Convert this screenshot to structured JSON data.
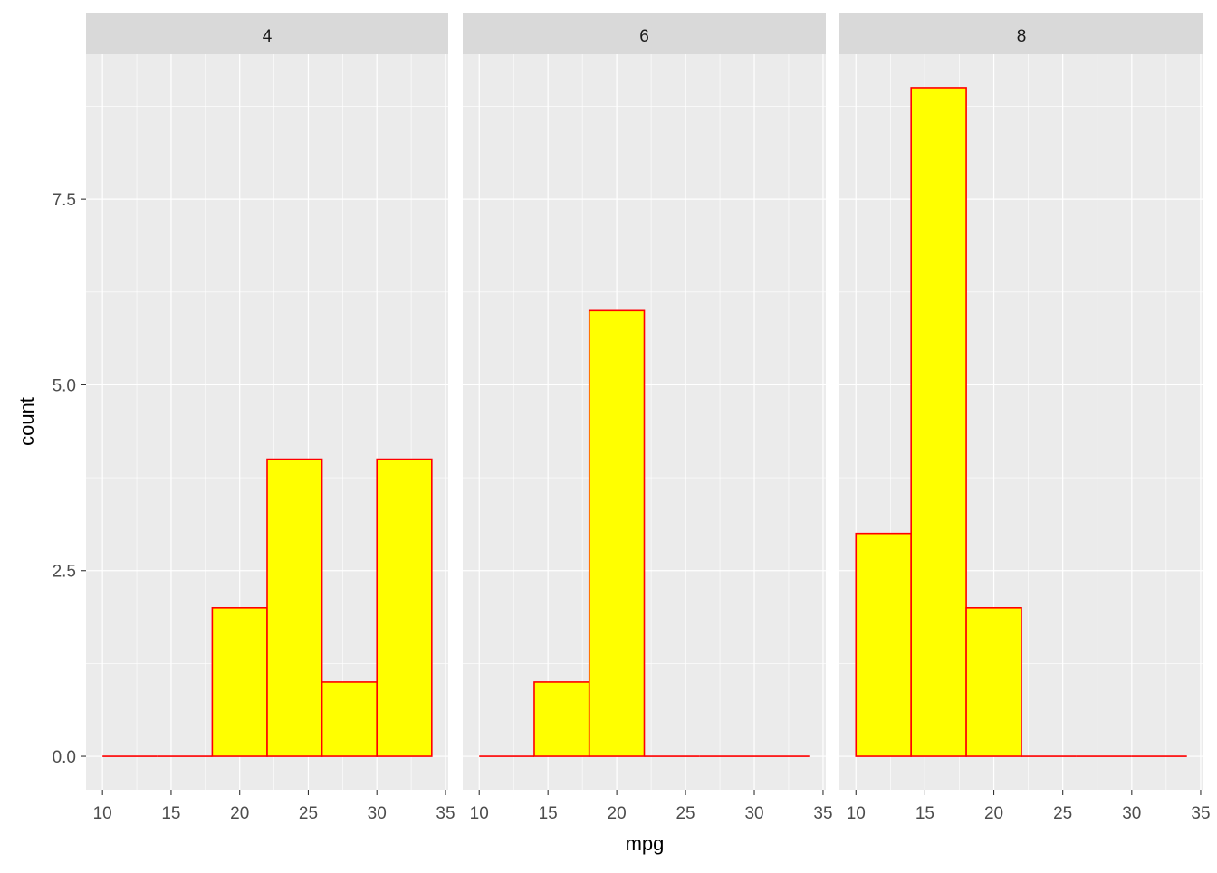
{
  "chart_data": {
    "type": "bar",
    "subtype": "histogram",
    "xlabel": "mpg",
    "ylabel": "count",
    "bin_edges": [
      10,
      14,
      18,
      22,
      26,
      30,
      34
    ],
    "xlim": [
      8.8,
      35.2
    ],
    "ylim": [
      -0.45,
      9.45
    ],
    "x_ticks": [
      "10",
      "15",
      "20",
      "25",
      "30",
      "35"
    ],
    "x_tick_values": [
      10,
      15,
      20,
      25,
      30,
      35
    ],
    "y_ticks": [
      "0.0",
      "2.5",
      "5.0",
      "7.5"
    ],
    "y_tick_values": [
      0,
      2.5,
      5,
      7.5
    ],
    "grid": true,
    "fill_color": "#FFFF00",
    "outline_color": "#FF0000",
    "panel_background": "#EBEBEB",
    "strip_background": "#D9D9D9",
    "facets": [
      {
        "label": "4",
        "counts": [
          0,
          0,
          2,
          4,
          1,
          4
        ]
      },
      {
        "label": "6",
        "counts": [
          0,
          1,
          6,
          0,
          0,
          0
        ]
      },
      {
        "label": "8",
        "counts": [
          3,
          9,
          2,
          0,
          0,
          0
        ]
      }
    ]
  }
}
